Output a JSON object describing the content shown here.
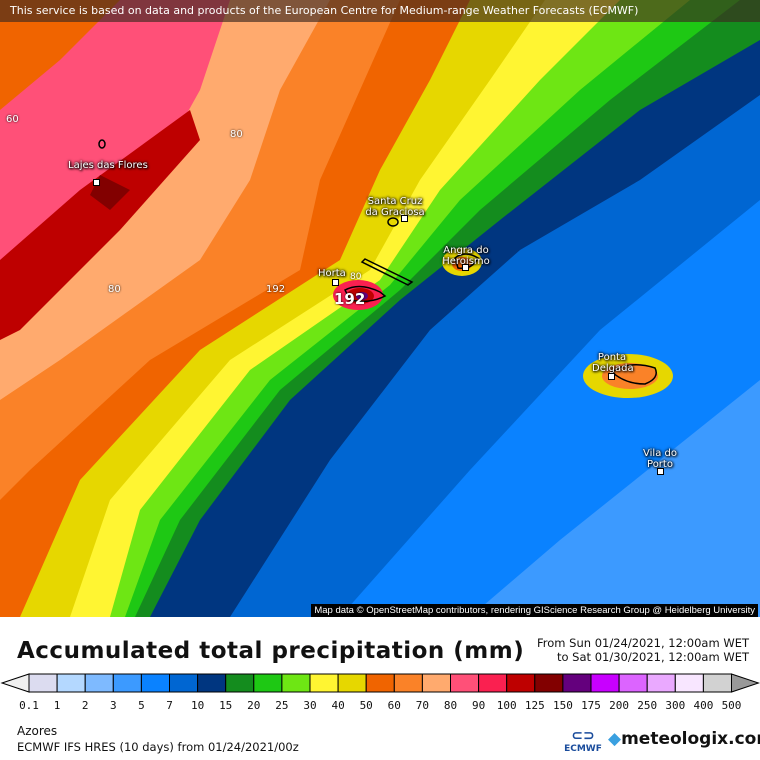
{
  "banner": "This service is based on data and products of the European Centre for Medium-range Weather Forecasts (ECMWF)",
  "attribution": "Map data © OpenStreetMap contributors, rendering GIScience Research Group @ Heidelberg University",
  "map": {
    "cities": [
      "Lajes das Flores",
      "Santa Cruz da Graciosa",
      "Angra do Heroismo",
      "Horta",
      "Ponta Delgada",
      "Vila do Porto"
    ],
    "contour_labels": [
      "80",
      "80",
      "80",
      "60",
      "60",
      "192"
    ]
  },
  "title": "Accumulated total precipitation (mm)",
  "period": {
    "from": "From Sun 01/24/2021, 12:00am WET",
    "to": "to Sat 01/30/2021, 12:00am WET"
  },
  "legend": {
    "labels": [
      "0.1",
      "1",
      "2",
      "3",
      "5",
      "7",
      "10",
      "15",
      "20",
      "25",
      "30",
      "40",
      "50",
      "60",
      "70",
      "80",
      "90",
      "100",
      "125",
      "150",
      "175",
      "200",
      "250",
      "300",
      "400",
      "500"
    ],
    "colors": [
      "#dcdcf0",
      "#b4d8ff",
      "#7ebaff",
      "#3c9aff",
      "#0a82ff",
      "#0066d2",
      "#003680",
      "#148c1e",
      "#1ec814",
      "#6ee614",
      "#fff532",
      "#e6d700",
      "#f06400",
      "#fa8228",
      "#ffaa6e",
      "#ff5078",
      "#fa2050",
      "#be0000",
      "#820000",
      "#64007d",
      "#c800ff",
      "#dc64ff",
      "#eaa9ff",
      "#f8e6ff",
      "#d2d2d2"
    ],
    "under_color": "#f0f0f0",
    "over_color": "#999999"
  },
  "region": "Azores",
  "model": "ECMWF IFS HRES (10 days) from 01/24/2021/00z",
  "logos": {
    "ecmwf": "ECMWF",
    "meteologix": "meteologix.com"
  }
}
